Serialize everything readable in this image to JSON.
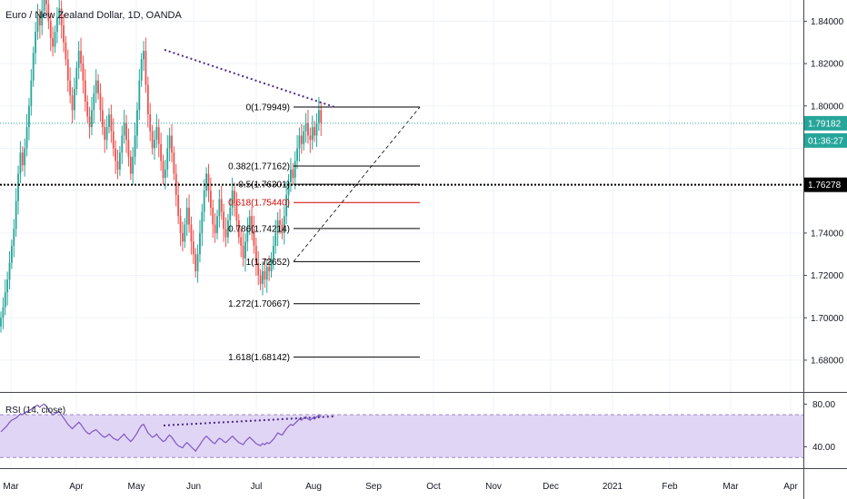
{
  "header": {
    "title": "Euro / New Zealand Dollar, 1D, OANDA"
  },
  "rsi_label": "RSI (14, close)",
  "price_axis": {
    "ticks": [
      {
        "v": 1.84,
        "label": "1.84000"
      },
      {
        "v": 1.82,
        "label": "1.82000"
      },
      {
        "v": 1.8,
        "label": "1.80000"
      },
      {
        "v": 1.74,
        "label": "1.74000"
      },
      {
        "v": 1.72,
        "label": "1.72000"
      },
      {
        "v": 1.7,
        "label": "1.70000"
      },
      {
        "v": 1.68,
        "label": "1.68000"
      }
    ]
  },
  "rsi_axis": {
    "ticks": [
      {
        "v": 80,
        "label": "80.00"
      },
      {
        "v": 40,
        "label": "40.00"
      }
    ]
  },
  "tags": {
    "price": {
      "value": 1.79182,
      "label": "1.79182",
      "color": "#26a69a"
    },
    "countdown": {
      "label": "01:36:27",
      "color": "#26a69a"
    },
    "hline": {
      "value": 1.76278,
      "label": "1.76278",
      "color": "#000000"
    }
  },
  "months": [
    "Mar",
    "Apr",
    "May",
    "Jun",
    "Jul",
    "Aug",
    "Sep",
    "Oct",
    "Nov",
    "Dec",
    "2021",
    "Feb",
    "Mar",
    "Apr"
  ],
  "colors": {
    "up": "#26a69a",
    "down": "#ef5350",
    "rsi": "#7e57c2",
    "rsi_band": "#e1d5f5",
    "fib_highlight": "#d50000",
    "grid": "#f0f3fa"
  },
  "chart_data": {
    "type": "candlestick",
    "instrument": "Euro / New Zealand Dollar",
    "timeframe": "1D",
    "source": "OANDA",
    "ylim": [
      1.665,
      1.85
    ],
    "rsi_ylim": [
      20,
      88
    ],
    "rsi_band": [
      30,
      70
    ],
    "fib_levels": [
      {
        "ratio": "0",
        "label": "0(1.79949)",
        "value": 1.79949
      },
      {
        "ratio": "0.382",
        "label": "0.382(1.77162)",
        "value": 1.77162
      },
      {
        "ratio": "0.5",
        "label": "0.5(1.76301)",
        "value": 1.76301
      },
      {
        "ratio": "0.618",
        "label": "0.618(1.75440)",
        "value": 1.7544,
        "highlight": true
      },
      {
        "ratio": "0.786",
        "label": "0.786(1.74214)",
        "value": 1.74214
      },
      {
        "ratio": "1",
        "label": "1(1.72652)",
        "value": 1.72652
      },
      {
        "ratio": "1.272",
        "label": "1.272(1.70667)",
        "value": 1.70667
      },
      {
        "ratio": "1.618",
        "label": "1.618(1.68142)",
        "value": 1.68142
      }
    ],
    "closes": [
      1.7,
      1.705,
      1.712,
      1.718,
      1.726,
      1.734,
      1.742,
      1.755,
      1.768,
      1.778,
      1.772,
      1.78,
      1.79,
      1.8,
      1.812,
      1.825,
      1.835,
      1.842,
      1.838,
      1.845,
      1.852,
      1.848,
      1.84,
      1.832,
      1.828,
      1.835,
      1.842,
      1.846,
      1.838,
      1.83,
      1.822,
      1.812,
      1.805,
      1.798,
      1.808,
      1.818,
      1.826,
      1.82,
      1.812,
      1.802,
      1.795,
      1.79,
      1.798,
      1.806,
      1.812,
      1.806,
      1.798,
      1.79,
      1.784,
      1.79,
      1.796,
      1.788,
      1.78,
      1.774,
      1.77,
      1.778,
      1.786,
      1.792,
      1.784,
      1.776,
      1.768,
      1.776,
      1.786,
      1.798,
      1.812,
      1.822,
      1.826,
      1.81,
      1.796,
      1.788,
      1.78,
      1.784,
      1.79,
      1.782,
      1.774,
      1.766,
      1.77,
      1.78,
      1.786,
      1.778,
      1.768,
      1.758,
      1.748,
      1.74,
      1.736,
      1.744,
      1.752,
      1.744,
      1.736,
      1.73,
      1.722,
      1.73,
      1.74,
      1.75,
      1.76,
      1.768,
      1.76,
      1.752,
      1.744,
      1.74,
      1.748,
      1.756,
      1.75,
      1.742,
      1.738,
      1.746,
      1.752,
      1.76,
      1.754,
      1.746,
      1.738,
      1.734,
      1.728,
      1.736,
      1.742,
      1.748,
      1.742,
      1.734,
      1.726,
      1.72,
      1.716,
      1.722,
      1.718,
      1.724,
      1.722,
      1.728,
      1.734,
      1.74,
      1.746,
      1.744,
      1.74,
      1.748,
      1.758,
      1.764,
      1.77,
      1.766,
      1.774,
      1.78,
      1.786,
      1.782,
      1.788,
      1.792,
      1.786,
      1.784,
      1.79,
      1.786,
      1.792,
      1.798,
      1.792
    ],
    "rsi": [
      54,
      56,
      58,
      60,
      63,
      65,
      66,
      67,
      69,
      71,
      70,
      72,
      73,
      74,
      75,
      77,
      78,
      79,
      77,
      79,
      80,
      78,
      75,
      72,
      70,
      71,
      72,
      73,
      70,
      67,
      64,
      61,
      59,
      57,
      59,
      61,
      63,
      61,
      58,
      55,
      53,
      52,
      54,
      55,
      56,
      54,
      52,
      50,
      49,
      50,
      52,
      50,
      48,
      47,
      46,
      48,
      50,
      52,
      49,
      47,
      45,
      47,
      50,
      53,
      57,
      60,
      61,
      57,
      53,
      51,
      49,
      50,
      52,
      49,
      47,
      45,
      46,
      49,
      51,
      49,
      46,
      43,
      41,
      40,
      39,
      42,
      44,
      42,
      40,
      38,
      36,
      39,
      42,
      45,
      48,
      50,
      48,
      46,
      44,
      43,
      46,
      48,
      47,
      45,
      44,
      46,
      48,
      50,
      48,
      46,
      44,
      43,
      42,
      45,
      47,
      49,
      47,
      45,
      43,
      42,
      41,
      43,
      42,
      44,
      43,
      45,
      47,
      50,
      53,
      52,
      51,
      54,
      57,
      59,
      61,
      60,
      62,
      64,
      66,
      65,
      67,
      68,
      66,
      65,
      67,
      66,
      68,
      70,
      68
    ]
  }
}
